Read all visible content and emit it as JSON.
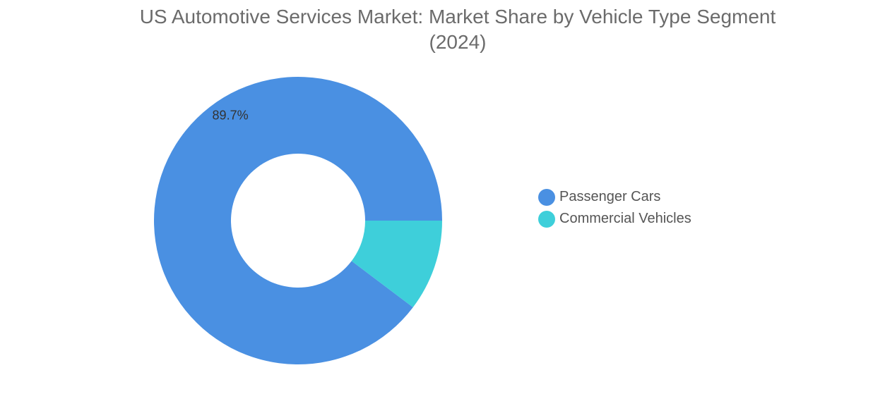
{
  "chart_data": {
    "type": "pie",
    "title": "US Automotive Services Market: Market Share by Vehicle Type Segment",
    "subtitle": "(2024)",
    "donut": true,
    "legend_position": "right",
    "categories": [
      "Passenger Cars",
      "Commercial Vehicles"
    ],
    "values": [
      89.7,
      10.3
    ],
    "data_labels": [
      "89.7%",
      ""
    ],
    "colors": [
      "#4a90e2",
      "#3ecfda"
    ]
  }
}
